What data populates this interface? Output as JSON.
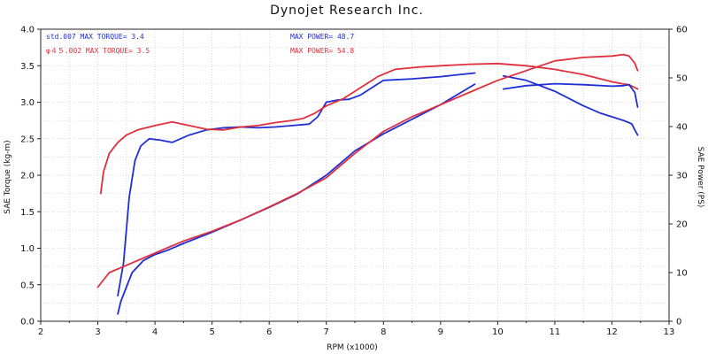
{
  "chart_data": {
    "type": "line",
    "title": "Dynojet  Research  Inc.",
    "xlabel": "RPM (x1000)",
    "ylabel_left": "SAE Torque (kg-m)",
    "ylabel_right": "SAE Power (PS)",
    "xlim": [
      2,
      13
    ],
    "ylim_left": [
      0,
      4
    ],
    "ylim_right": [
      0,
      60
    ],
    "x_ticks": [
      "2",
      "3",
      "4",
      "5",
      "6",
      "7",
      "8",
      "9",
      "10",
      "11",
      "12",
      "13"
    ],
    "y_left_ticks": [
      "0.0",
      "0.5",
      "1.0",
      "1.5",
      "2.0",
      "2.5",
      "3.0",
      "3.5",
      "4.0"
    ],
    "y_right_ticks": [
      "0",
      "10",
      "20",
      "30",
      "40",
      "50",
      "60"
    ],
    "grid": true,
    "legend": [
      {
        "text": "std.007  MAX TORQUE= 3.4",
        "color": "#1f2fd6"
      },
      {
        "text": "MAX POWER= 48.7",
        "color": "#1f2fd6"
      },
      {
        "text": "φ４５.002  MAX TORQUE= 3.5",
        "color": "#e0303c"
      },
      {
        "text": "MAX POWER= 54.8",
        "color": "#e0303c"
      }
    ],
    "series": [
      {
        "kind": "torque",
        "axis": "left",
        "color": "#1f2fd6",
        "x": [
          3.35,
          3.45,
          3.55,
          3.65,
          3.75,
          3.9,
          4.1,
          4.3,
          4.6,
          4.9,
          5.2,
          5.5,
          5.8,
          6.1,
          6.4,
          6.7,
          6.85,
          7.0,
          7.2,
          7.4,
          7.6,
          7.8,
          8.0,
          8.5,
          9.0,
          9.6
        ],
        "y": [
          0.35,
          0.8,
          1.7,
          2.2,
          2.4,
          2.5,
          2.48,
          2.45,
          2.55,
          2.62,
          2.65,
          2.66,
          2.65,
          2.66,
          2.68,
          2.7,
          2.8,
          3.0,
          3.03,
          3.04,
          3.1,
          3.2,
          3.3,
          3.32,
          3.35,
          3.4
        ]
      },
      {
        "kind": "torque",
        "axis": "left",
        "color": "#1f2fd6",
        "x": [
          10.1,
          10.5,
          11.0,
          11.5,
          11.8,
          12.0,
          12.2,
          12.3,
          12.35,
          12.4,
          12.45
        ],
        "y": [
          3.36,
          3.3,
          3.15,
          2.95,
          2.85,
          2.8,
          2.75,
          2.72,
          2.7,
          2.62,
          2.55
        ]
      },
      {
        "kind": "torque",
        "axis": "left",
        "color": "#e0303c",
        "x": [
          3.05,
          3.1,
          3.2,
          3.35,
          3.5,
          3.7,
          4.0,
          4.3,
          4.6,
          4.9,
          5.2,
          5.5,
          5.8,
          6.1,
          6.4,
          6.6,
          6.8,
          7.0,
          7.3,
          7.6,
          7.9,
          8.2,
          8.6,
          9.0,
          9.5,
          10.0,
          10.5,
          11.0,
          11.5,
          11.8,
          12.0,
          12.2,
          12.3,
          12.4,
          12.45
        ],
        "y": [
          1.75,
          2.05,
          2.3,
          2.45,
          2.55,
          2.62,
          2.68,
          2.73,
          2.68,
          2.63,
          2.62,
          2.66,
          2.68,
          2.72,
          2.75,
          2.78,
          2.85,
          2.95,
          3.05,
          3.2,
          3.35,
          3.45,
          3.48,
          3.5,
          3.52,
          3.53,
          3.5,
          3.45,
          3.38,
          3.32,
          3.28,
          3.25,
          3.24,
          3.2,
          3.18
        ]
      },
      {
        "kind": "power",
        "axis": "right",
        "color": "#1f2fd6",
        "x": [
          3.35,
          3.4,
          3.5,
          3.6,
          3.8,
          4.0,
          4.2,
          4.5,
          5.0,
          5.5,
          6.0,
          6.5,
          7.0,
          7.5,
          8.0,
          8.5,
          9.0,
          9.6
        ],
        "y": [
          1.5,
          4,
          7,
          10,
          12.5,
          13.7,
          14.5,
          16,
          18.3,
          20.8,
          23.4,
          26.2,
          30,
          35,
          38.5,
          41.5,
          44.5,
          48.7
        ]
      },
      {
        "kind": "power",
        "axis": "right",
        "color": "#1f2fd6",
        "x": [
          10.1,
          10.5,
          11.0,
          11.5,
          12.0,
          12.2,
          12.3,
          12.4,
          12.45
        ],
        "y": [
          47.7,
          48.4,
          48.8,
          48.6,
          48.3,
          48.4,
          48.6,
          47,
          44
        ]
      },
      {
        "kind": "power",
        "axis": "right",
        "color": "#e0303c",
        "x": [
          3.0,
          3.2,
          3.5,
          4.0,
          4.5,
          5.0,
          5.5,
          6.0,
          6.5,
          7.0,
          7.5,
          8.0,
          8.5,
          9.0,
          9.5,
          10.0,
          10.5,
          11.0,
          11.5,
          12.0,
          12.2,
          12.3,
          12.4,
          12.45
        ],
        "y": [
          7,
          10,
          11.5,
          14,
          16.5,
          18.5,
          20.8,
          23.5,
          26.3,
          29.5,
          34.5,
          39,
          42,
          44.5,
          47,
          49.5,
          51.5,
          53.5,
          54.2,
          54.5,
          54.8,
          54.5,
          53,
          51.5
        ]
      }
    ]
  }
}
